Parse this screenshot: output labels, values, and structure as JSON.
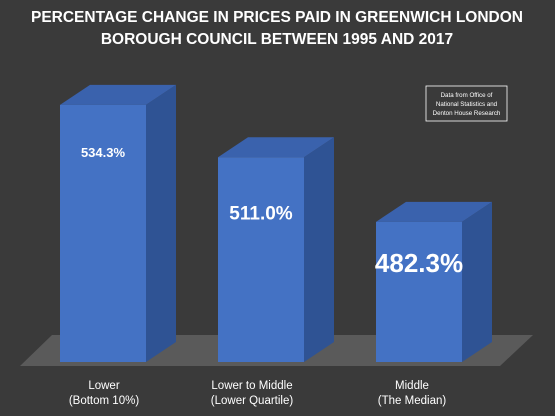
{
  "chart_data": {
    "type": "bar",
    "title_lines": [
      "PERCENTAGE CHANGE IN PRICES PAID IN GREENWICH LONDON",
      "BOROUGH COUNCIL BETWEEN 1995 AND 2017"
    ],
    "categories": [
      [
        "Lower",
        "(Bottom 10%)"
      ],
      [
        "Lower to Middle",
        "(Lower Quartile)"
      ],
      [
        "Middle",
        "(The Median)"
      ]
    ],
    "values": [
      534.3,
      511.0,
      482.3
    ],
    "data_labels": [
      "534.3%",
      "511.0%",
      "482.3%"
    ],
    "source_note_lines": [
      "Data from Office of",
      "National Statistics and",
      "Denton House Research"
    ],
    "style": "3d-column",
    "colors": {
      "background": "#3a3a3a",
      "bar_front": "#4472c4",
      "bar_side": "#2f5394",
      "bar_top": "#3a62ad",
      "floor": "#5a5a5a",
      "text": "#ffffff"
    },
    "legend": "none",
    "grid": false
  }
}
